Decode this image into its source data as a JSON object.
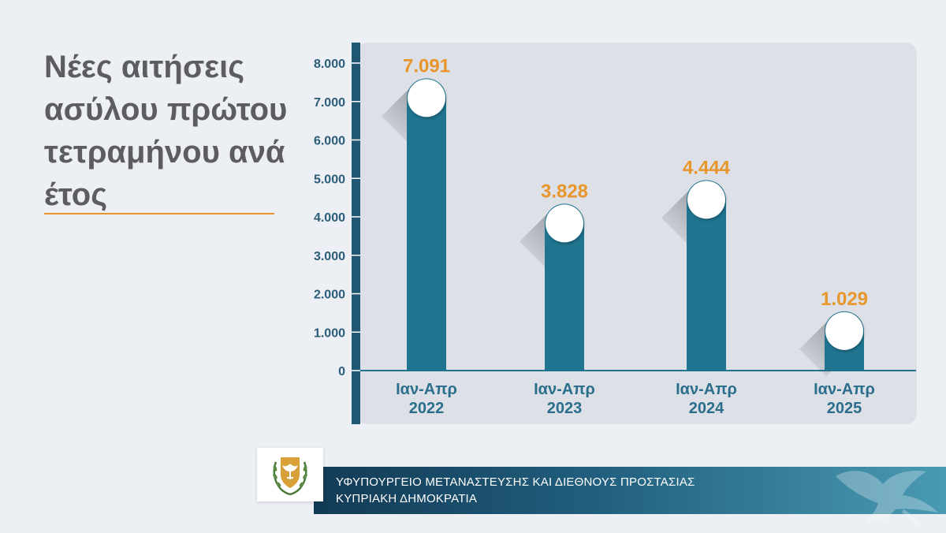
{
  "title": "Νέες αιτήσεις ασύλου πρώτου τετραμήνου ανά έτος",
  "chart_data": {
    "type": "bar",
    "title": "Νέες αιτήσεις ασύλου πρώτου τετραμήνου ανά έτος",
    "categories": [
      {
        "line1": "Ιαν-Απρ",
        "line2": "2022"
      },
      {
        "line1": "Ιαν-Απρ",
        "line2": "2023"
      },
      {
        "line1": "Ιαν-Απρ",
        "line2": "2024"
      },
      {
        "line1": "Ιαν-Απρ",
        "line2": "2025"
      }
    ],
    "values": [
      7091,
      3828,
      4444,
      1029
    ],
    "value_labels": [
      "7.091",
      "3.828",
      "4.444",
      "1.029"
    ],
    "ylim": [
      0,
      8000
    ],
    "yticks": [
      0,
      1000,
      2000,
      3000,
      4000,
      5000,
      6000,
      7000,
      8000
    ],
    "ytick_labels": [
      "0",
      "1.000",
      "2.000",
      "3.000",
      "4.000",
      "5.000",
      "6.000",
      "7.000",
      "8.000"
    ],
    "grid": false,
    "legend": "none",
    "colors": {
      "bar": "#1f748f",
      "value_label": "#e8952c",
      "axis": "#1e5673",
      "tick_label": "#2b5d78"
    }
  },
  "footer": {
    "line1": "ΥΦΥΠΟΥΡΓΕΙΟ ΜΕΤΑΝΑΣΤΕΥΣΗΣ ΚΑΙ ΔΙΕΘΝΟΥΣ ΠΡΟΣΤΑΣΙΑΣ",
    "line2": "ΚΥΠΡΙΑΚΗ ΔΗΜΟΚΡΑΤΙΑ",
    "emblem_icon": "cyprus-coat-of-arms-icon",
    "watermark_icon": "dove-icon"
  }
}
